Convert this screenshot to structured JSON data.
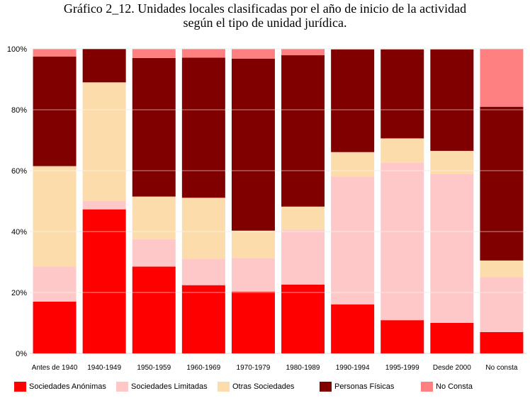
{
  "title_lines": [
    "Gráfico 2_12. Unidades locales clasificadas por el año de inicio de la actividad",
    "según el tipo de unidad jurídica."
  ],
  "chart_data": {
    "type": "bar",
    "stacked": true,
    "percent": true,
    "title": "Gráfico 2_12. Unidades locales clasificadas por el año de inicio de la actividad según el tipo de unidad jurídica.",
    "xlabel": "",
    "ylabel": "",
    "ylim": [
      0,
      100
    ],
    "yticks": [
      "0%",
      "20%",
      "40%",
      "60%",
      "80%",
      "100%"
    ],
    "grid": true,
    "legend_position": "bottom",
    "categories": [
      "Antes de 1940",
      "1940-1949",
      "1950-1959",
      "1960-1969",
      "1970-1979",
      "1980-1989",
      "1990-1994",
      "1995-1999",
      "Desde 2000",
      "No consta"
    ],
    "series": [
      {
        "name": "Sociedades Anónimas",
        "color": "#ff0000",
        "values": [
          17.0,
          47.3,
          28.5,
          22.4,
          20.3,
          22.6,
          16.1,
          10.9,
          10.0,
          7.0
        ]
      },
      {
        "name": "Sociedades Limitadas",
        "color": "#ffc8c8",
        "values": [
          11.5,
          2.7,
          9.0,
          8.7,
          11.0,
          18.0,
          42.0,
          51.7,
          49.0,
          18.0
        ]
      },
      {
        "name": "Otras Sociedades",
        "color": "#fddcab",
        "values": [
          33.0,
          39.0,
          14.0,
          20.0,
          9.0,
          7.6,
          8.0,
          8.0,
          7.5,
          5.5
        ]
      },
      {
        "name": "Personas Físicas",
        "color": "#800000",
        "values": [
          36.0,
          11.0,
          45.5,
          46.0,
          56.5,
          49.7,
          33.7,
          29.2,
          33.3,
          50.5
        ]
      },
      {
        "name": "No Consta",
        "color": "#ff8080",
        "values": [
          2.5,
          0.0,
          3.0,
          2.9,
          3.2,
          2.1,
          0.2,
          0.2,
          0.2,
          19.0
        ]
      }
    ]
  }
}
